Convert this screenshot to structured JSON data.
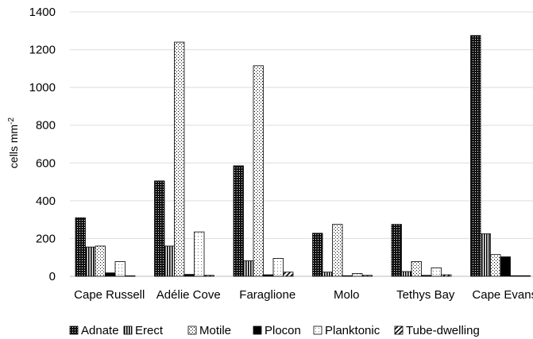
{
  "chart_data": {
    "type": "bar",
    "title": "",
    "xlabel": "",
    "ylabel": "cells mm",
    "ylabel_superscript": "-2",
    "ylim": [
      0,
      1400
    ],
    "yticks": [
      0,
      200,
      400,
      600,
      800,
      1000,
      1200,
      1400
    ],
    "grid": true,
    "legend_position": "bottom",
    "categories": [
      "Cape Russell",
      "Adélie Cove",
      "Faraglione",
      "Molo",
      "Tethys Bay",
      "Cape Evans"
    ],
    "series": [
      {
        "name": "Adnate",
        "pattern": "dense-dots",
        "values": [
          310,
          505,
          585,
          228,
          275,
          1275
        ]
      },
      {
        "name": "Erect",
        "pattern": "vertical-lines",
        "values": [
          155,
          160,
          82,
          22,
          25,
          225
        ]
      },
      {
        "name": "Motile",
        "pattern": "sparse-dots",
        "values": [
          160,
          1240,
          1115,
          275,
          78,
          115
        ]
      },
      {
        "name": "Plocon",
        "pattern": "solid-black",
        "values": [
          18,
          10,
          8,
          3,
          5,
          103
        ]
      },
      {
        "name": "Planktonic",
        "pattern": "light-dots",
        "values": [
          78,
          235,
          95,
          15,
          45,
          3
        ]
      },
      {
        "name": "Tube-dwelling",
        "pattern": "diagonal-lines",
        "values": [
          0,
          5,
          22,
          5,
          8,
          3
        ]
      }
    ]
  }
}
